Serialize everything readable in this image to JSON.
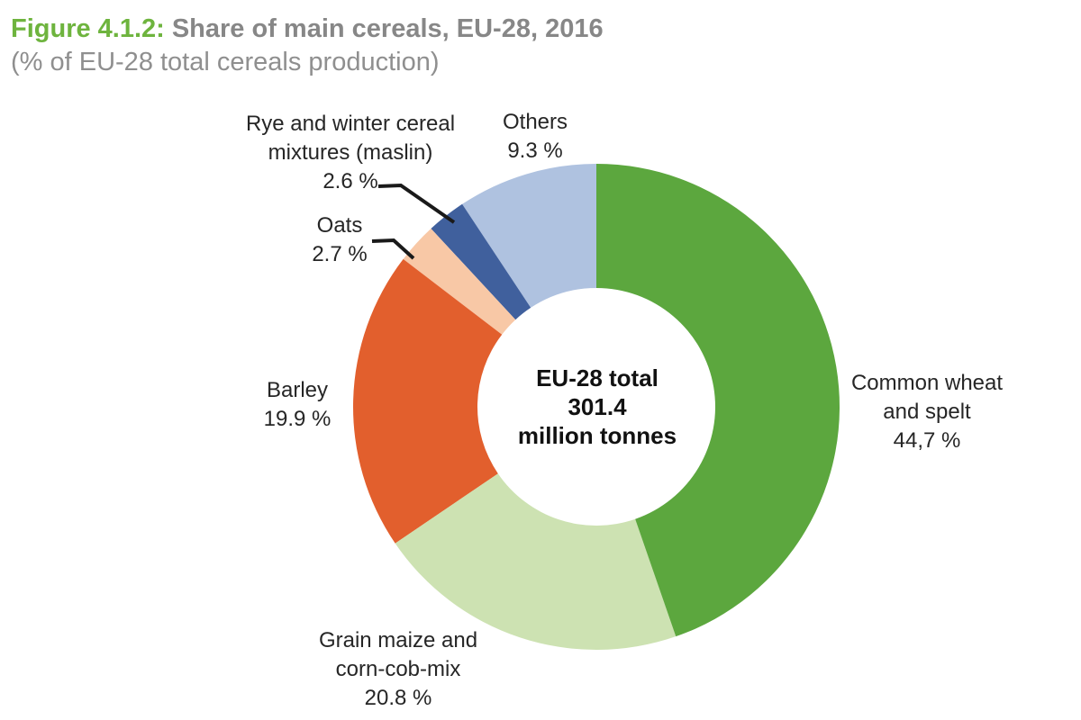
{
  "header": {
    "figure_label": "Figure 4.1.2:",
    "title": "Share of main cereals, EU-28, 2016",
    "subtitle": "(% of EU-28 total cereals production)",
    "figure_label_color": "#6eb43e",
    "title_color": "#878787",
    "subtitle_color": "#8f8f8f"
  },
  "center_label": {
    "line1": "EU-28 total",
    "line2": "301.4",
    "line3": "million tonnes"
  },
  "labels": {
    "rye": {
      "line1": "Rye and winter cereal",
      "line2": "mixtures (maslin)",
      "line3": "2.6 %"
    },
    "others": {
      "line1": "Others",
      "line2": "9.3 %"
    },
    "oats": {
      "line1": "Oats",
      "line2": "2.7 %"
    },
    "barley": {
      "line1": "Barley",
      "line2": "19.9 %"
    },
    "wheat": {
      "line1": "Common wheat",
      "line2": "and spelt",
      "line3": "44,7 %"
    },
    "maize": {
      "line1": "Grain maize and",
      "line2": "corn-cob-mix",
      "line3": "20.8 %"
    }
  },
  "chart_data": {
    "type": "pie",
    "subtype": "donut",
    "title": "Share of main cereals, EU-28, 2016",
    "unit": "% of EU-28 total cereals production",
    "center_text": "EU-28 total 301.4 million tonnes",
    "total_value": 301.4,
    "total_unit": "million tonnes",
    "start_angle_deg": 0,
    "direction": "clockwise",
    "legend_position": "none",
    "leader_line_color": "#1a1a1a",
    "slices": [
      {
        "id": "common-wheat",
        "label": "Common wheat and spelt",
        "display_value": "44,7 %",
        "value": 44.7,
        "color": "#5ca73e"
      },
      {
        "id": "grain-maize",
        "label": "Grain maize and corn-cob-mix",
        "display_value": "20.8 %",
        "value": 20.8,
        "color": "#cde2b2"
      },
      {
        "id": "barley",
        "label": "Barley",
        "display_value": "19.9 %",
        "value": 19.9,
        "color": "#e25f2d"
      },
      {
        "id": "oats",
        "label": "Oats",
        "display_value": "2.7 %",
        "value": 2.7,
        "color": "#f8c8a6"
      },
      {
        "id": "rye",
        "label": "Rye and winter cereal mixtures (maslin)",
        "display_value": "2.6 %",
        "value": 2.6,
        "color": "#40609d"
      },
      {
        "id": "others",
        "label": "Others",
        "display_value": "9.3 %",
        "value": 9.3,
        "color": "#afc2e0"
      }
    ]
  }
}
